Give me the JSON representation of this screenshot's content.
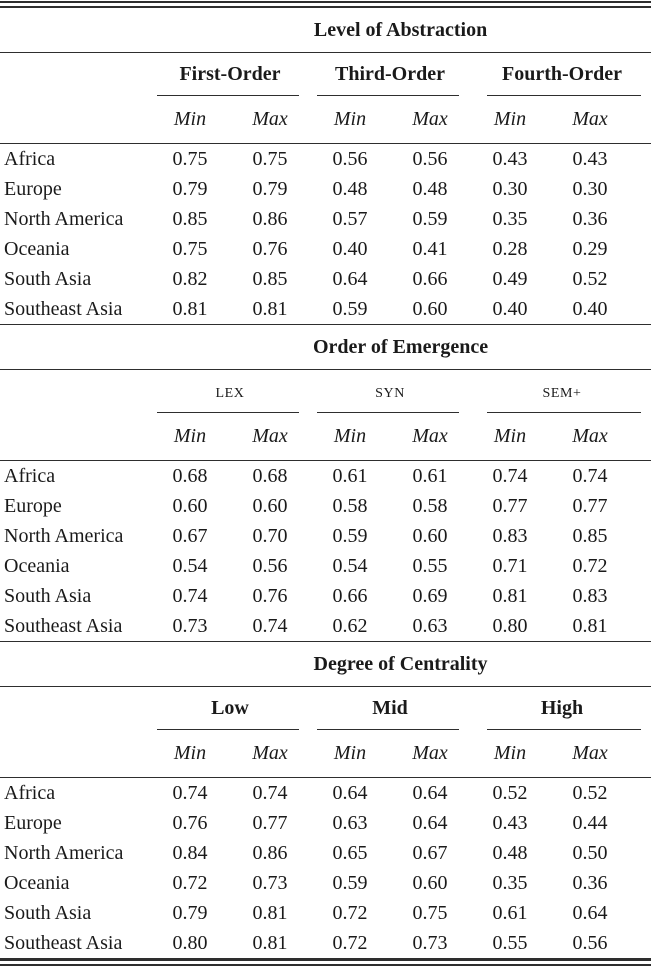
{
  "page": {
    "background": "#ffffff",
    "text_color": "#1a1a1a",
    "rule_color": "#2e2e2e"
  },
  "tables": [
    {
      "title": "Level of Abstraction",
      "column_groups": [
        "First-Order",
        "Third-Order",
        "Fourth-Order"
      ],
      "subheaders": [
        "Min",
        "Max"
      ],
      "rows": [
        {
          "label": "Africa",
          "values": [
            "0.75",
            "0.75",
            "0.56",
            "0.56",
            "0.43",
            "0.43"
          ]
        },
        {
          "label": "Europe",
          "values": [
            "0.79",
            "0.79",
            "0.48",
            "0.48",
            "0.30",
            "0.30"
          ]
        },
        {
          "label": "North America",
          "values": [
            "0.85",
            "0.86",
            "0.57",
            "0.59",
            "0.35",
            "0.36"
          ]
        },
        {
          "label": "Oceania",
          "values": [
            "0.75",
            "0.76",
            "0.40",
            "0.41",
            "0.28",
            "0.29"
          ]
        },
        {
          "label": "South Asia",
          "values": [
            "0.82",
            "0.85",
            "0.64",
            "0.66",
            "0.49",
            "0.52"
          ]
        },
        {
          "label": "Southeast Asia",
          "values": [
            "0.81",
            "0.81",
            "0.59",
            "0.60",
            "0.40",
            "0.40"
          ]
        }
      ]
    },
    {
      "title": "Order of Emergence",
      "column_groups": [
        "LEX",
        "SYN",
        "SEM+"
      ],
      "subheaders": [
        "Min",
        "Max"
      ],
      "rows": [
        {
          "label": "Africa",
          "values": [
            "0.68",
            "0.68",
            "0.61",
            "0.61",
            "0.74",
            "0.74"
          ]
        },
        {
          "label": "Europe",
          "values": [
            "0.60",
            "0.60",
            "0.58",
            "0.58",
            "0.77",
            "0.77"
          ]
        },
        {
          "label": "North America",
          "values": [
            "0.67",
            "0.70",
            "0.59",
            "0.60",
            "0.83",
            "0.85"
          ]
        },
        {
          "label": "Oceania",
          "values": [
            "0.54",
            "0.56",
            "0.54",
            "0.55",
            "0.71",
            "0.72"
          ]
        },
        {
          "label": "South Asia",
          "values": [
            "0.74",
            "0.76",
            "0.66",
            "0.69",
            "0.81",
            "0.83"
          ]
        },
        {
          "label": "Southeast Asia",
          "values": [
            "0.73",
            "0.74",
            "0.62",
            "0.63",
            "0.80",
            "0.81"
          ]
        }
      ]
    },
    {
      "title": "Degree of Centrality",
      "column_groups": [
        "Low",
        "Mid",
        "High"
      ],
      "subheaders": [
        "Min",
        "Max"
      ],
      "rows": [
        {
          "label": "Africa",
          "values": [
            "0.74",
            "0.74",
            "0.64",
            "0.64",
            "0.52",
            "0.52"
          ]
        },
        {
          "label": "Europe",
          "values": [
            "0.76",
            "0.77",
            "0.63",
            "0.64",
            "0.43",
            "0.44"
          ]
        },
        {
          "label": "North America",
          "values": [
            "0.84",
            "0.86",
            "0.65",
            "0.67",
            "0.48",
            "0.50"
          ]
        },
        {
          "label": "Oceania",
          "values": [
            "0.72",
            "0.73",
            "0.59",
            "0.60",
            "0.35",
            "0.36"
          ]
        },
        {
          "label": "South Asia",
          "values": [
            "0.79",
            "0.81",
            "0.72",
            "0.75",
            "0.61",
            "0.64"
          ]
        },
        {
          "label": "Southeast Asia",
          "values": [
            "0.80",
            "0.81",
            "0.72",
            "0.73",
            "0.55",
            "0.56"
          ]
        }
      ]
    }
  ]
}
